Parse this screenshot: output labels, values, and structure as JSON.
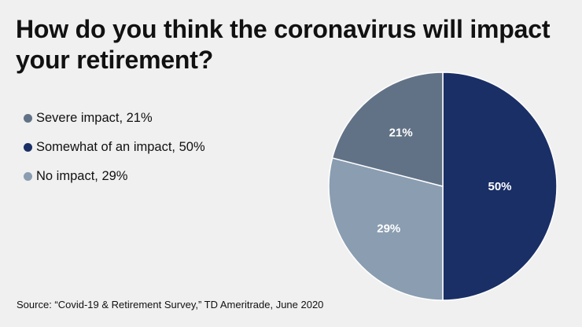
{
  "chart_data": {
    "type": "pie",
    "title": "How do you think the coronavirus will impact your retirement?",
    "start_angle": "top",
    "direction": "clockwise",
    "slices": [
      {
        "label": "Somewhat of an impact",
        "value": 50,
        "data_label": "50%",
        "color": "#1a2f66"
      },
      {
        "label": "No impact",
        "value": 29,
        "data_label": "29%",
        "color": "#8a9db1"
      },
      {
        "label": "Severe impact",
        "value": 21,
        "data_label": "21%",
        "color": "#627286"
      }
    ],
    "legend": {
      "placement": "left",
      "items": [
        {
          "text": "Severe impact, 21%",
          "color": "#627286"
        },
        {
          "text": "Somewhat of an impact, 50%",
          "color": "#1a2f66"
        },
        {
          "text": "No impact, 29%",
          "color": "#8a9db1"
        }
      ]
    },
    "source": "Source: “Covid-19 & Retirement Survey,” TD Ameritrade, June 2020"
  }
}
